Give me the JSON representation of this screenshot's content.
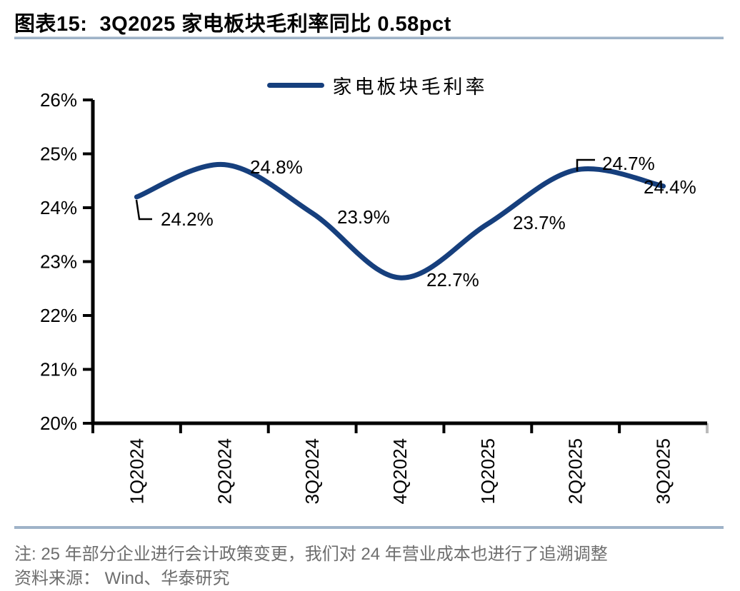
{
  "title": {
    "text": "图表15:  3Q2025 家电板块毛利率同比 0.58pct"
  },
  "legend": {
    "label": "家电板块毛利率"
  },
  "footnote": {
    "note": "注: 25 年部分企业进行会计政策变更，我们对 24 年营业成本也进行了追溯调整",
    "source": "资料来源： Wind、华泰研究"
  },
  "colors": {
    "line": "#163F7D",
    "rule": "#9FB3C8",
    "axis": "#000000",
    "label_text": "#000000",
    "footnote_text": "#6E6E6E",
    "end_tick": "#BBBBBB"
  },
  "chart_data": {
    "type": "line",
    "title": "3Q2025 家电板块毛利率同比 0.58pct",
    "categories": [
      "1Q2024",
      "2Q2024",
      "3Q2024",
      "4Q2024",
      "1Q2025",
      "2Q2025",
      "3Q2025"
    ],
    "series": [
      {
        "name": "家电板块毛利率",
        "values": [
          24.2,
          24.8,
          23.9,
          22.7,
          23.7,
          24.7,
          24.4
        ]
      }
    ],
    "data_labels": [
      "24.2%",
      "24.8%",
      "23.9%",
      "22.7%",
      "23.7%",
      "24.7%",
      "24.4%"
    ],
    "xlabel": "",
    "ylabel": "",
    "ylim": [
      20,
      26
    ],
    "ytick_step": 1,
    "ytick_labels": [
      "20%",
      "21%",
      "22%",
      "23%",
      "24%",
      "25%",
      "26%"
    ],
    "grid": false,
    "smooth": true,
    "legend_position": "top-center"
  }
}
